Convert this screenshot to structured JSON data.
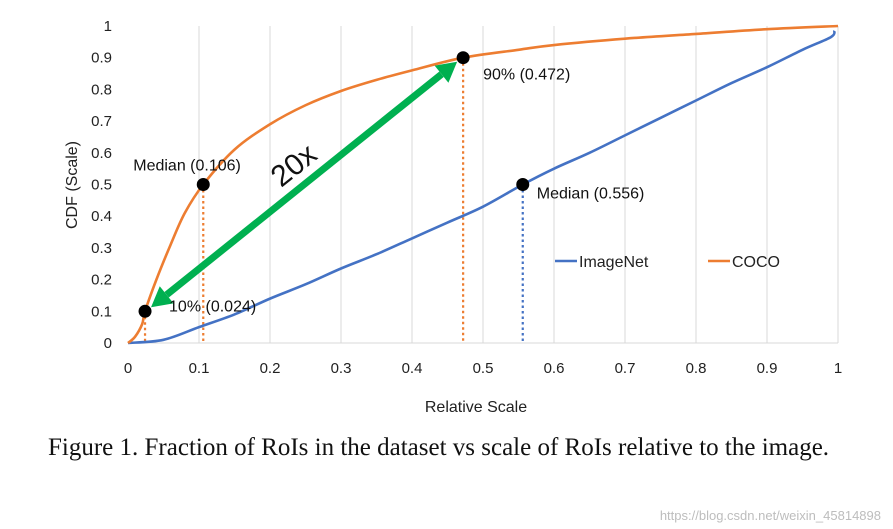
{
  "chart_data": {
    "type": "line",
    "xlabel": "Relative Scale",
    "ylabel": "CDF (Scale)",
    "xlim": [
      0,
      1
    ],
    "ylim": [
      0,
      1
    ],
    "xticks": [
      "0",
      "0.1",
      "0.2",
      "0.3",
      "0.4",
      "0.5",
      "0.6",
      "0.7",
      "0.8",
      "0.9",
      "1"
    ],
    "yticks": [
      "0",
      "0.1",
      "0.2",
      "0.3",
      "0.4",
      "0.5",
      "0.6",
      "0.7",
      "0.8",
      "0.9",
      "1"
    ],
    "grid": "vertical",
    "legend_position": "right-middle",
    "series": [
      {
        "name": "ImageNet",
        "color": "#4472C4",
        "x": [
          0.0,
          0.05,
          0.1,
          0.15,
          0.2,
          0.25,
          0.3,
          0.35,
          0.4,
          0.45,
          0.5,
          0.556,
          0.6,
          0.65,
          0.7,
          0.75,
          0.8,
          0.85,
          0.9,
          0.95,
          0.99,
          0.995
        ],
        "y": [
          0.0,
          0.01,
          0.05,
          0.09,
          0.14,
          0.185,
          0.235,
          0.28,
          0.33,
          0.38,
          0.43,
          0.5,
          0.55,
          0.6,
          0.655,
          0.71,
          0.765,
          0.82,
          0.87,
          0.925,
          0.965,
          0.985
        ]
      },
      {
        "name": "COCO",
        "color": "#ED7D31",
        "x": [
          0.0,
          0.01,
          0.02,
          0.024,
          0.04,
          0.06,
          0.08,
          0.106,
          0.15,
          0.2,
          0.25,
          0.3,
          0.35,
          0.4,
          0.472,
          0.55,
          0.6,
          0.7,
          0.8,
          0.9,
          1.0
        ],
        "y": [
          0.0,
          0.02,
          0.06,
          0.1,
          0.2,
          0.31,
          0.41,
          0.5,
          0.61,
          0.69,
          0.75,
          0.795,
          0.83,
          0.86,
          0.9,
          0.925,
          0.94,
          0.96,
          0.975,
          0.99,
          1.0
        ]
      }
    ],
    "markers": [
      {
        "x": 0.024,
        "y": 0.1,
        "label": "10% (0.024)",
        "color": "#ED7D31"
      },
      {
        "x": 0.106,
        "y": 0.5,
        "label": "Median (0.106)",
        "color": "#ED7D31"
      },
      {
        "x": 0.472,
        "y": 0.9,
        "label": "90% (0.472)",
        "color": "#ED7D31"
      },
      {
        "x": 0.556,
        "y": 0.5,
        "label": "Median (0.556)",
        "color": "#4472C4"
      }
    ],
    "arrow": {
      "label": "20x",
      "color": "#00B050",
      "from": [
        0.024,
        0.1
      ],
      "to": [
        0.472,
        0.9
      ]
    }
  },
  "caption": "Figure 1. Fraction of RoIs in the dataset vs scale of RoIs relative to the image.",
  "watermark": "https://blog.csdn.net/weixin_45814898"
}
